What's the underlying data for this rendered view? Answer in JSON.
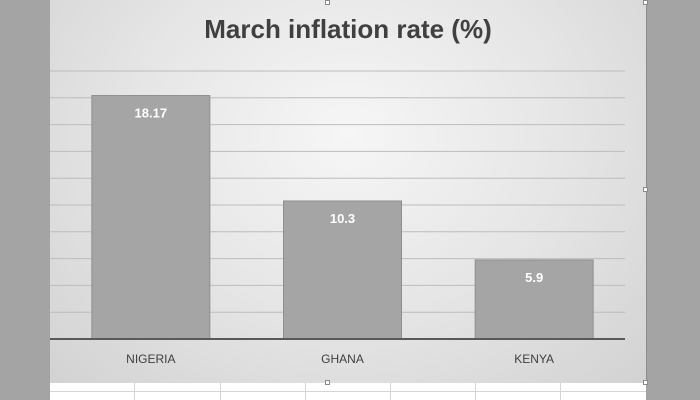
{
  "chart_data": {
    "type": "bar",
    "title": "March inflation rate (%)",
    "categories": [
      "NIGERIA",
      "GHANA",
      "KENYA"
    ],
    "values": [
      18.17,
      10.3,
      5.9
    ],
    "ylim": [
      0,
      24
    ],
    "grid": true,
    "legend": "none",
    "colors": {
      "bar": "#a5a5a5",
      "bar_label": "#ffffff",
      "title": "#404040"
    }
  }
}
